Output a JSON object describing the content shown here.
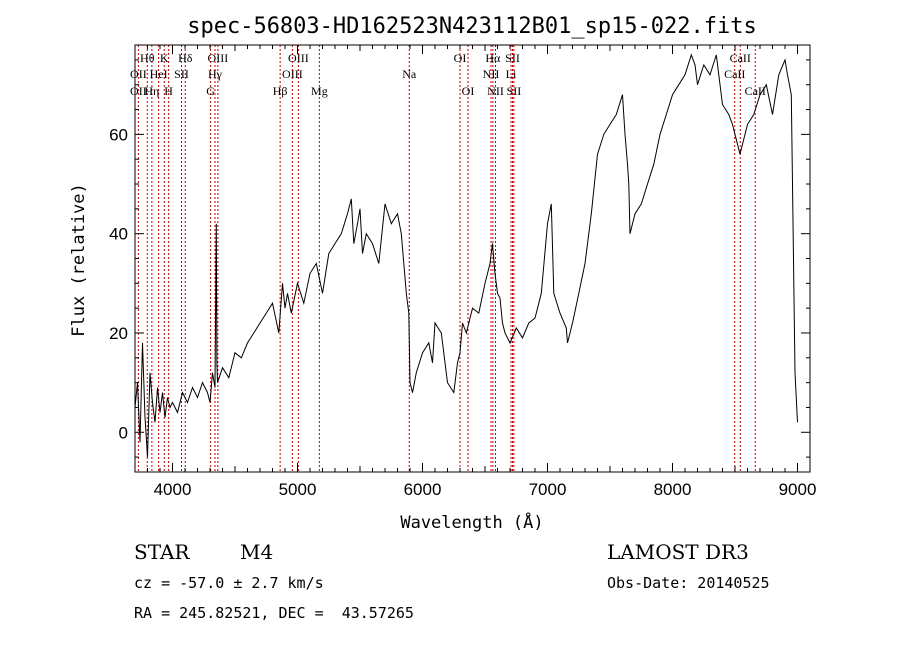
{
  "chart_data": {
    "type": "line",
    "title": "spec-56803-HD162523N423112B01_sp15-022.fits",
    "xlabel": "Wavelength (Å)",
    "ylabel": "Flux (relative)",
    "xlim": [
      3700,
      9100
    ],
    "ylim": [
      -8,
      78
    ],
    "x_ticks": [
      4000,
      5000,
      6000,
      7000,
      8000,
      9000
    ],
    "y_ticks": [
      0,
      20,
      40,
      60
    ],
    "grid": false,
    "line_color": "#000000",
    "marker_color": "#c00000",
    "series": [
      {
        "x": [
          3700,
          3720,
          3740,
          3760,
          3780,
          3800,
          3820,
          3840,
          3860,
          3880,
          3900,
          3920,
          3940,
          3960,
          3980,
          4000,
          4040,
          4080,
          4120,
          4160,
          4200,
          4240,
          4280,
          4300,
          4320,
          4340,
          4350,
          4355,
          4360,
          4400,
          4450,
          4500,
          4550,
          4600,
          4650,
          4700,
          4750,
          4800,
          4850,
          4880,
          4900,
          4920,
          4950,
          5000,
          5050,
          5100,
          5150,
          5200,
          5250,
          5300,
          5350,
          5400,
          5430,
          5450,
          5480,
          5500,
          5520,
          5550,
          5600,
          5650,
          5700,
          5750,
          5800,
          5830,
          5850,
          5870,
          5890,
          5900,
          5920,
          5950,
          6000,
          6050,
          6080,
          6100,
          6150,
          6200,
          6250,
          6280,
          6300,
          6320,
          6350,
          6400,
          6450,
          6500,
          6540,
          6560,
          6580,
          6600,
          6620,
          6640,
          6660,
          6700,
          6750,
          6800,
          6850,
          6900,
          6950,
          7000,
          7030,
          7050,
          7100,
          7150,
          7160,
          7180,
          7200,
          7250,
          7300,
          7350,
          7400,
          7450,
          7500,
          7550,
          7600,
          7620,
          7640,
          7650,
          7660,
          7680,
          7700,
          7750,
          7800,
          7850,
          7900,
          7950,
          8000,
          8050,
          8100,
          8150,
          8180,
          8200,
          8250,
          8300,
          8350,
          8400,
          8450,
          8480,
          8500,
          8520,
          8540,
          8560,
          8600,
          8650,
          8700,
          8750,
          8800,
          8850,
          8900,
          8920,
          8950,
          8980,
          9000
        ],
        "y": [
          5,
          10,
          -2,
          18,
          3,
          -5,
          12,
          6,
          2,
          9,
          4,
          8,
          3,
          7,
          5,
          6,
          4,
          8,
          6,
          9,
          7,
          10,
          8,
          6,
          12,
          9,
          42,
          14,
          10,
          13,
          11,
          16,
          15,
          18,
          20,
          22,
          24,
          26,
          20,
          30,
          25,
          28,
          24,
          30,
          26,
          32,
          34,
          28,
          36,
          38,
          40,
          44,
          47,
          38,
          42,
          45,
          36,
          40,
          38,
          34,
          46,
          42,
          44,
          40,
          34,
          28,
          24,
          10,
          8,
          12,
          16,
          18,
          14,
          22,
          20,
          10,
          8,
          14,
          16,
          22,
          20,
          25,
          24,
          30,
          34,
          38,
          32,
          28,
          27,
          22,
          20,
          18,
          21,
          19,
          22,
          23,
          28,
          42,
          46,
          28,
          24,
          21,
          18,
          20,
          22,
          28,
          34,
          44,
          56,
          60,
          62,
          64,
          68,
          60,
          54,
          50,
          40,
          42,
          44,
          46,
          50,
          54,
          60,
          64,
          68,
          70,
          72,
          76,
          74,
          70,
          74,
          72,
          76,
          66,
          64,
          62,
          60,
          58,
          56,
          58,
          62,
          64,
          68,
          70,
          64,
          72,
          75,
          72,
          68,
          12,
          2
        ]
      }
    ],
    "emission_lines": [
      {
        "label": "Hθ",
        "wave": 3798,
        "row": 1
      },
      {
        "label": "OII",
        "wave": 3727,
        "row": 2
      },
      {
        "label": "OII",
        "wave": 3727,
        "row": 3
      },
      {
        "label": "Hη",
        "wave": 3835,
        "row": 3
      },
      {
        "label": "K",
        "wave": 3934,
        "row": 1
      },
      {
        "label": "HeI",
        "wave": 3889,
        "row": 2
      },
      {
        "label": "H",
        "wave": 3969,
        "row": 3
      },
      {
        "label": "Hδ",
        "wave": 4102,
        "row": 1
      },
      {
        "label": "SII",
        "wave": 4072,
        "row": 2
      },
      {
        "label": "OIII",
        "wave": 4363,
        "row": 1
      },
      {
        "label": "Hγ",
        "wave": 4340,
        "row": 2
      },
      {
        "label": "G",
        "wave": 4305,
        "row": 3
      },
      {
        "label": "Hβ",
        "wave": 4861,
        "row": 3
      },
      {
        "label": "OIII",
        "wave": 5007,
        "row": 1
      },
      {
        "label": "OIII",
        "wave": 4959,
        "row": 2
      },
      {
        "label": "Mg",
        "wave": 5175,
        "row": 3
      },
      {
        "label": "Na",
        "wave": 5894,
        "row": 2
      },
      {
        "label": "OI",
        "wave": 6300,
        "row": 1
      },
      {
        "label": "OI",
        "wave": 6364,
        "row": 3
      },
      {
        "label": "Hα",
        "wave": 6563,
        "row": 1
      },
      {
        "label": "SII",
        "wave": 6720,
        "row": 1
      },
      {
        "label": "NII",
        "wave": 6548,
        "row": 2
      },
      {
        "label": "Li",
        "wave": 6708,
        "row": 2
      },
      {
        "label": "NII",
        "wave": 6584,
        "row": 3
      },
      {
        "label": "SII",
        "wave": 6731,
        "row": 3
      },
      {
        "label": "CaII",
        "wave": 8542,
        "row": 1
      },
      {
        "label": "CaII",
        "wave": 8498,
        "row": 2
      },
      {
        "label": "CaII",
        "wave": 8662,
        "row": 3
      }
    ]
  },
  "info": {
    "object_type": "STAR",
    "subclass": "M4",
    "survey": "LAMOST DR3",
    "cz": "cz = -57.0 ± 2.7 km/s",
    "obs_date": "Obs-Date: 20140525",
    "coords": "RA = 245.82521, DEC =  43.57265"
  }
}
